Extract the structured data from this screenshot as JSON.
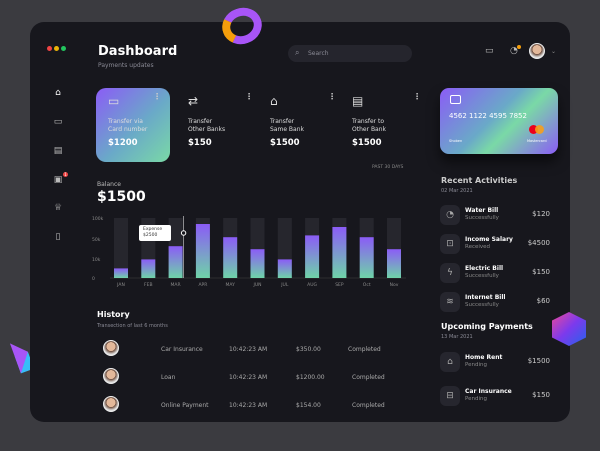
{
  "header": {
    "title": "Dashboard",
    "subtitle": "Payments updates",
    "search_placeholder": "Search"
  },
  "sidebar": {
    "items": [
      {
        "icon": "home-icon"
      },
      {
        "icon": "monitor-icon"
      },
      {
        "icon": "clipboard-icon"
      },
      {
        "icon": "message-icon",
        "badge": "1"
      },
      {
        "icon": "trophy-icon"
      },
      {
        "icon": "document-icon"
      }
    ]
  },
  "transfers": [
    {
      "label1": "Transfer via",
      "label2": "Card number",
      "amount": "$1200",
      "icon": "credit-card-icon"
    },
    {
      "label1": "Transfer",
      "label2": "Other Banks",
      "amount": "$150",
      "icon": "arrows-icon"
    },
    {
      "label1": "Transfer",
      "label2": "Same Bank",
      "amount": "$1500",
      "icon": "bank-icon"
    },
    {
      "label1": "Transfer to",
      "label2": "Other Bank",
      "amount": "$1500",
      "icon": "document-transfer-icon"
    }
  ],
  "balance": {
    "label": "Balance",
    "amount": "$1500",
    "period": "PAST 30 DAYS",
    "tooltip_label": "Expense",
    "tooltip_value": "$2500"
  },
  "chart_data": {
    "type": "bar",
    "categories": [
      "JAN",
      "FEB",
      "MAR",
      "APR",
      "MAY",
      "JUN",
      "JUL",
      "AUG",
      "SEP",
      "Oct",
      "Nov"
    ],
    "values": [
      16,
      31,
      53,
      90,
      68,
      48,
      31,
      71,
      85,
      68,
      48
    ],
    "yticks": [
      "100k",
      "50k",
      "10k",
      "0"
    ],
    "ylim": [
      0,
      100
    ],
    "highlight": "MAR"
  },
  "history": {
    "title": "History",
    "subtitle": "Transection of last 6 months",
    "rows": [
      {
        "name": "Car Insurance",
        "time": "10:42:23 AM",
        "amount": "$350.00",
        "status": "Completed"
      },
      {
        "name": "Loan",
        "time": "10:42:23 AM",
        "amount": "$1200.00",
        "status": "Completed"
      },
      {
        "name": "Online Payment",
        "time": "10:42:23 AM",
        "amount": "$154.00",
        "status": "Completed"
      }
    ]
  },
  "card": {
    "number": "4562 1122 4595 7852",
    "holder": "Shoben",
    "brand": "Mastercard"
  },
  "recent": {
    "title": "Recent Activities",
    "date": "02 Mar 2021",
    "items": [
      {
        "name": "Water Bill",
        "status": "Successfully",
        "amount": "$120",
        "icon": "water-icon"
      },
      {
        "name": "Income Salary",
        "status": "Received",
        "amount": "$4500",
        "icon": "inbox-icon"
      },
      {
        "name": "Electric Bill",
        "status": "Successfully",
        "amount": "$150",
        "icon": "lightning-icon"
      },
      {
        "name": "Internet Bill",
        "status": "Successfully",
        "amount": "$60",
        "icon": "wifi-icon"
      }
    ]
  },
  "upcoming": {
    "title": "Upcoming Payments",
    "date": "13 Mar 2021",
    "items": [
      {
        "name": "Home Rent",
        "status": "Pending",
        "amount": "$1500",
        "icon": "home-icon"
      },
      {
        "name": "Car Insurance",
        "status": "Pending",
        "amount": "$150",
        "icon": "car-icon"
      }
    ]
  },
  "colors": {
    "bar_top": "#8b5cf6",
    "bar_bottom": "#6fd3a8",
    "panel": "#17171d"
  }
}
